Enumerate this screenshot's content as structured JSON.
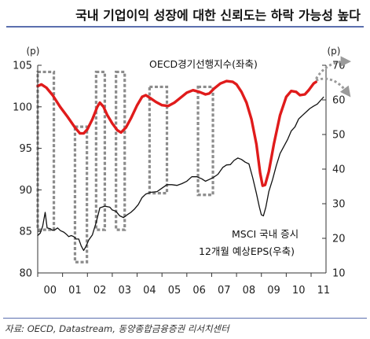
{
  "page": {
    "title": "국내 기업이익 성장에 대한 신뢰도는 하락 가능성 높다",
    "source": "자료: OECD, Datastream, 동양종합금융증권 리서치센터"
  },
  "chart_data": {
    "type": "line",
    "left_unit": "(p)",
    "right_unit": "(p)",
    "x_ticks": [
      "00",
      "01",
      "02",
      "03",
      "04",
      "05",
      "06",
      "07",
      "08",
      "09",
      "10",
      "11"
    ],
    "x_range": [
      2000,
      2011.6
    ],
    "y_left": {
      "min": 80,
      "max": 105,
      "ticks": [
        80,
        85,
        90,
        95,
        100,
        105
      ]
    },
    "y_right": {
      "min": 10,
      "max": 70,
      "ticks": [
        10,
        20,
        30,
        40,
        50,
        60,
        70
      ]
    },
    "grid": false,
    "series": [
      {
        "name": "OECD경기선행지수(좌축)",
        "axis": "left",
        "color": "#e01b1b",
        "points": [
          [
            2000.0,
            102.5
          ],
          [
            2000.15,
            102.7
          ],
          [
            2000.35,
            102.3
          ],
          [
            2000.6,
            101.4
          ],
          [
            2000.9,
            100.0
          ],
          [
            2001.2,
            98.8
          ],
          [
            2001.5,
            97.5
          ],
          [
            2001.7,
            96.8
          ],
          [
            2001.85,
            96.8
          ],
          [
            2002.0,
            97.3
          ],
          [
            2002.2,
            98.5
          ],
          [
            2002.4,
            100.0
          ],
          [
            2002.5,
            100.5
          ],
          [
            2002.65,
            100.0
          ],
          [
            2002.8,
            99.0
          ],
          [
            2003.0,
            98.0
          ],
          [
            2003.2,
            97.2
          ],
          [
            2003.35,
            96.9
          ],
          [
            2003.55,
            97.5
          ],
          [
            2003.75,
            98.6
          ],
          [
            2004.0,
            100.2
          ],
          [
            2004.2,
            101.2
          ],
          [
            2004.35,
            101.4
          ],
          [
            2004.55,
            101.0
          ],
          [
            2004.75,
            100.6
          ],
          [
            2005.0,
            100.2
          ],
          [
            2005.25,
            100.1
          ],
          [
            2005.5,
            100.5
          ],
          [
            2005.75,
            101.1
          ],
          [
            2006.0,
            101.7
          ],
          [
            2006.25,
            102.0
          ],
          [
            2006.5,
            101.8
          ],
          [
            2006.75,
            101.5
          ],
          [
            2006.9,
            101.6
          ],
          [
            2007.1,
            102.2
          ],
          [
            2007.35,
            102.8
          ],
          [
            2007.6,
            103.1
          ],
          [
            2007.85,
            103.0
          ],
          [
            2008.0,
            102.7
          ],
          [
            2008.2,
            101.8
          ],
          [
            2008.4,
            100.5
          ],
          [
            2008.6,
            98.5
          ],
          [
            2008.8,
            95.5
          ],
          [
            2008.95,
            92.0
          ],
          [
            2009.05,
            90.5
          ],
          [
            2009.15,
            90.6
          ],
          [
            2009.3,
            92.2
          ],
          [
            2009.5,
            95.5
          ],
          [
            2009.75,
            99.0
          ],
          [
            2010.0,
            101.2
          ],
          [
            2010.2,
            101.9
          ],
          [
            2010.4,
            101.8
          ],
          [
            2010.55,
            101.4
          ],
          [
            2010.75,
            101.5
          ],
          [
            2010.9,
            102.0
          ],
          [
            2011.1,
            102.8
          ],
          [
            2011.2,
            103.0
          ]
        ]
      },
      {
        "name": "MSCI 국내 증시 12개월 예상EPS(우축)",
        "axis": "right",
        "color": "#111111",
        "points": [
          [
            2000.0,
            20.8
          ],
          [
            2000.1,
            21.5
          ],
          [
            2000.2,
            23.5
          ],
          [
            2000.3,
            27.5
          ],
          [
            2000.38,
            23.0
          ],
          [
            2000.5,
            22.8
          ],
          [
            2000.6,
            22.3
          ],
          [
            2000.7,
            22.5
          ],
          [
            2000.8,
            23.0
          ],
          [
            2000.92,
            22.2
          ],
          [
            2001.05,
            21.8
          ],
          [
            2001.15,
            21.2
          ],
          [
            2001.25,
            20.5
          ],
          [
            2001.35,
            20.8
          ],
          [
            2001.45,
            20.5
          ],
          [
            2001.55,
            19.8
          ],
          [
            2001.65,
            19.8
          ],
          [
            2001.75,
            17.8
          ],
          [
            2001.85,
            16.5
          ],
          [
            2001.95,
            17.8
          ],
          [
            2002.05,
            19.5
          ],
          [
            2002.2,
            21.0
          ],
          [
            2002.35,
            24.5
          ],
          [
            2002.5,
            28.8
          ],
          [
            2002.7,
            29.3
          ],
          [
            2002.9,
            29.0
          ],
          [
            2003.0,
            28.2
          ],
          [
            2003.15,
            27.8
          ],
          [
            2003.3,
            26.5
          ],
          [
            2003.45,
            26.0
          ],
          [
            2003.6,
            26.8
          ],
          [
            2003.75,
            27.5
          ],
          [
            2003.9,
            28.5
          ],
          [
            2004.05,
            29.8
          ],
          [
            2004.2,
            31.8
          ],
          [
            2004.35,
            32.8
          ],
          [
            2004.55,
            33.3
          ],
          [
            2004.8,
            33.5
          ],
          [
            2005.0,
            34.5
          ],
          [
            2005.2,
            35.5
          ],
          [
            2005.4,
            35.5
          ],
          [
            2005.6,
            35.3
          ],
          [
            2005.8,
            35.8
          ],
          [
            2006.0,
            36.5
          ],
          [
            2006.2,
            37.8
          ],
          [
            2006.4,
            37.8
          ],
          [
            2006.6,
            37.2
          ],
          [
            2006.75,
            36.5
          ],
          [
            2006.9,
            37.0
          ],
          [
            2007.05,
            37.5
          ],
          [
            2007.25,
            38.5
          ],
          [
            2007.45,
            40.5
          ],
          [
            2007.6,
            41.2
          ],
          [
            2007.75,
            41.3
          ],
          [
            2007.9,
            42.5
          ],
          [
            2008.05,
            43.2
          ],
          [
            2008.2,
            42.8
          ],
          [
            2008.35,
            42.0
          ],
          [
            2008.5,
            41.5
          ],
          [
            2008.65,
            37.5
          ],
          [
            2008.8,
            33.0
          ],
          [
            2008.92,
            29.0
          ],
          [
            2009.0,
            26.8
          ],
          [
            2009.08,
            26.5
          ],
          [
            2009.18,
            29.0
          ],
          [
            2009.3,
            33.5
          ],
          [
            2009.45,
            37.0
          ],
          [
            2009.6,
            41.0
          ],
          [
            2009.75,
            44.5
          ],
          [
            2009.9,
            46.5
          ],
          [
            2010.05,
            48.5
          ],
          [
            2010.2,
            51.0
          ],
          [
            2010.35,
            52.2
          ],
          [
            2010.5,
            54.5
          ],
          [
            2010.65,
            55.5
          ],
          [
            2010.8,
            56.5
          ],
          [
            2010.95,
            57.5
          ],
          [
            2011.1,
            58.2
          ],
          [
            2011.25,
            58.8
          ],
          [
            2011.4,
            60.0
          ],
          [
            2011.5,
            60.8
          ]
        ]
      }
    ],
    "legend": {
      "oecd": "OECD경기선행지수(좌축)",
      "msci_line1": "MSCI 국내 증시",
      "msci_line2": "12개월  예상EPS(우축)"
    },
    "annotations": {
      "boxes": [
        {
          "x_from": 2000.0,
          "x_to": 2000.65,
          "left_from": 85.2,
          "left_to": 104.2
        },
        {
          "x_from": 2001.5,
          "x_to": 2001.98,
          "left_from": 81.3,
          "left_to": 97.6
        },
        {
          "x_from": 2002.35,
          "x_to": 2002.7,
          "left_from": 85.2,
          "left_to": 104.2
        },
        {
          "x_from": 2003.15,
          "x_to": 2003.5,
          "left_from": 85.2,
          "left_to": 104.2
        },
        {
          "x_from": 2004.5,
          "x_to": 2005.2,
          "left_from": 89.6,
          "left_to": 102.4
        },
        {
          "x_from": 2006.45,
          "x_to": 2007.05,
          "left_from": 89.4,
          "left_to": 102.4
        }
      ],
      "forecast_arrows": [
        {
          "direction": "up",
          "color": "#9a9a9a"
        },
        {
          "direction": "down",
          "color": "#9a9a9a"
        }
      ]
    }
  }
}
